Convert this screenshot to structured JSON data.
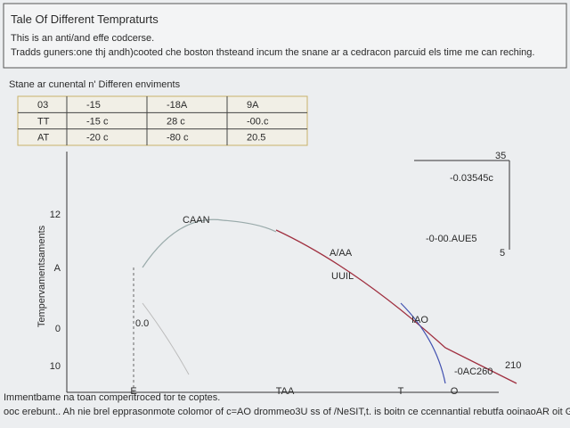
{
  "header": {
    "title": "Tale Of Different Tempraturts",
    "lines": [
      "This is an anti/and effe codcerse.",
      "Tradds guners:one thj andh)cooted che boston thsteand incum the snane ar a cedracon parcuid els time me can reching."
    ]
  },
  "table": {
    "caption": "Stane ar cunental n' Differen enviments",
    "rows": [
      [
        "03",
        "-15",
        "-18A",
        "9A"
      ],
      [
        "TT",
        "-15 c",
        "28 c",
        "-00.c"
      ],
      [
        "AT",
        "-20 c",
        "-80 c",
        "20.5"
      ]
    ]
  },
  "figure": {
    "y_axis_title": "Tempervamentsaments",
    "y_labels": [
      "12",
      "A",
      "0",
      "10"
    ],
    "x_labels": [
      "E",
      "TAA",
      "T",
      "O"
    ],
    "annotations": [
      "CAAN",
      "A/AA",
      "UUIL",
      "0.0",
      "IAO",
      "-0.03545c",
      "-0-00.AUE5",
      "35",
      "5",
      "-0AC260",
      "210"
    ]
  },
  "footer": {
    "lines": [
      "Immentbame na toan comperitroced tor te coptes.",
      "ooc erebunt.. Ah nie brel epprasonmote colomor of  c=AO drommeo3U ss of /NeSIT,t. is boitn ce ccennantial rebutfa ooinaoAR oit GT/Vecsitu"
    ]
  }
}
